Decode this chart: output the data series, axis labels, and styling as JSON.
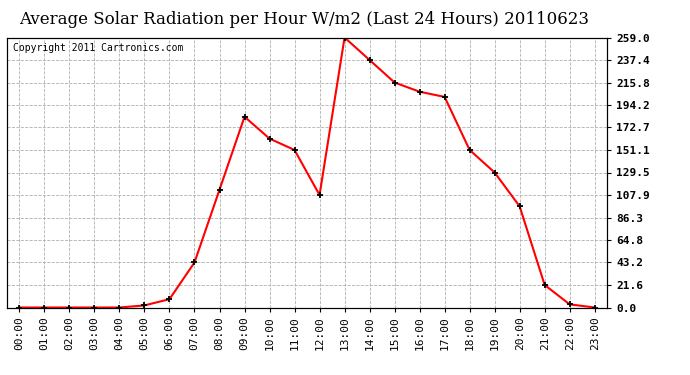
{
  "title": "Average Solar Radiation per Hour W/m2 (Last 24 Hours) 20110623",
  "copyright": "Copyright 2011 Cartronics.com",
  "hours": [
    "00:00",
    "01:00",
    "02:00",
    "03:00",
    "04:00",
    "05:00",
    "06:00",
    "07:00",
    "08:00",
    "09:00",
    "10:00",
    "11:00",
    "12:00",
    "13:00",
    "14:00",
    "15:00",
    "16:00",
    "17:00",
    "18:00",
    "19:00",
    "20:00",
    "21:00",
    "22:00",
    "23:00"
  ],
  "values": [
    0.0,
    0.0,
    0.0,
    0.0,
    0.0,
    2.0,
    8.0,
    43.2,
    113.0,
    183.0,
    162.0,
    151.1,
    107.9,
    259.0,
    237.4,
    215.8,
    207.0,
    202.0,
    151.1,
    129.5,
    97.0,
    21.6,
    3.0,
    0.0
  ],
  "yticks": [
    0.0,
    21.6,
    43.2,
    64.8,
    86.3,
    107.9,
    129.5,
    151.1,
    172.7,
    194.2,
    215.8,
    237.4,
    259.0
  ],
  "line_color": "#ff0000",
  "marker_color": "#000000",
  "bg_color": "#ffffff",
  "grid_color": "#b0b0b0",
  "title_fontsize": 12,
  "copyright_fontsize": 7,
  "tick_fontsize": 8,
  "ymin": 0.0,
  "ymax": 259.0
}
